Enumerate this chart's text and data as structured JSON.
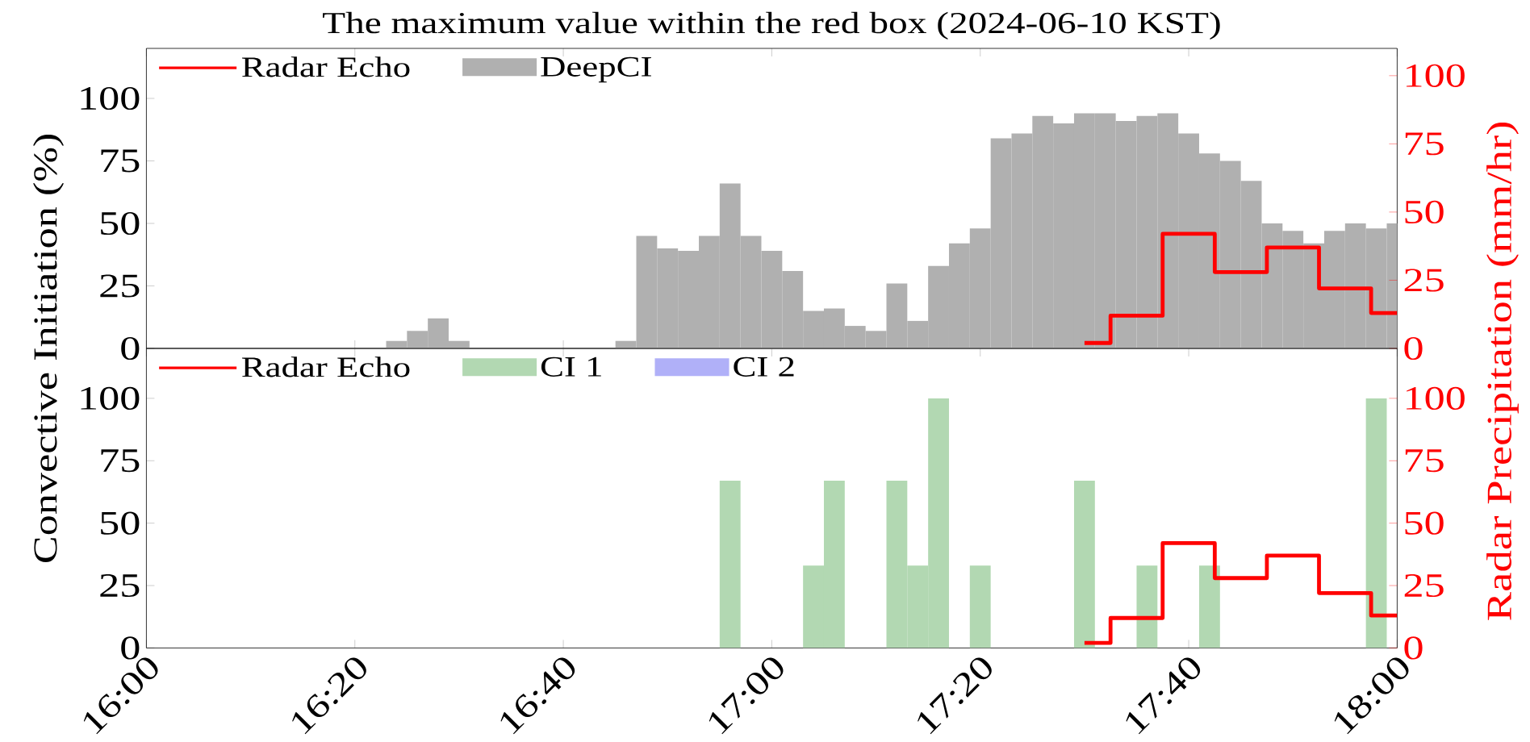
{
  "chart_data": [
    {
      "type": "bar",
      "title": "The maximum value within the red box (2024-06-10 KST)",
      "ylabel": "Convective Initiation (%)",
      "y2label": "Radar Precipitation (mm/hr)",
      "xlim": [
        "2024-06-10T16:00",
        "2024-06-10T18:00"
      ],
      "xticks": [
        {
          "value": "2024-06-10T16:00",
          "label": null
        },
        {
          "value": "2024-06-10T16:20",
          "label": null
        },
        {
          "value": "2024-06-10T16:40",
          "label": null
        },
        {
          "value": "2024-06-10T17:00",
          "label": null
        },
        {
          "value": "2024-06-10T17:20",
          "label": null
        },
        {
          "value": "2024-06-10T17:40",
          "label": null
        },
        {
          "value": "2024-06-10T18:00",
          "label": null
        }
      ],
      "ylim": [
        0,
        120
      ],
      "yticks": [
        0,
        25,
        50,
        75,
        100
      ],
      "y2lim": [
        0,
        110
      ],
      "y2ticks": [
        0,
        25,
        50,
        75,
        100
      ],
      "legend": "top left",
      "tick_labels": "y",
      "series": [
        {
          "name": "Radar Echo",
          "type": "step",
          "axis": "y2",
          "color": "#ff0000",
          "x": [
            "2024-06-10T17:30",
            "2024-06-10T17:35",
            "2024-06-10T17:40",
            "2024-06-10T17:45",
            "2024-06-10T17:50",
            "2024-06-10T17:55",
            "2024-06-10T18:00"
          ],
          "values": [
            2,
            12,
            42,
            28,
            37,
            22,
            13
          ]
        },
        {
          "name": "DeepCI",
          "color": "#b0b0b0",
          "x": [
            "2024-06-10T16:24",
            "2024-06-10T16:26",
            "2024-06-10T16:28",
            "2024-06-10T16:30",
            "2024-06-10T16:46",
            "2024-06-10T16:48",
            "2024-06-10T16:50",
            "2024-06-10T16:52",
            "2024-06-10T16:54",
            "2024-06-10T16:56",
            "2024-06-10T16:58",
            "2024-06-10T17:00",
            "2024-06-10T17:02",
            "2024-06-10T17:04",
            "2024-06-10T17:06",
            "2024-06-10T17:08",
            "2024-06-10T17:10",
            "2024-06-10T17:12",
            "2024-06-10T17:14",
            "2024-06-10T17:16",
            "2024-06-10T17:18",
            "2024-06-10T17:20",
            "2024-06-10T17:22",
            "2024-06-10T17:24",
            "2024-06-10T17:26",
            "2024-06-10T17:28",
            "2024-06-10T17:30",
            "2024-06-10T17:32",
            "2024-06-10T17:34",
            "2024-06-10T17:36",
            "2024-06-10T17:38",
            "2024-06-10T17:40",
            "2024-06-10T17:42",
            "2024-06-10T17:44",
            "2024-06-10T17:46",
            "2024-06-10T17:48",
            "2024-06-10T17:50",
            "2024-06-10T17:52",
            "2024-06-10T17:54",
            "2024-06-10T17:56",
            "2024-06-10T17:58",
            "2024-06-10T18:00"
          ],
          "values": [
            3,
            7,
            12,
            3,
            3,
            45,
            40,
            39,
            45,
            66,
            45,
            39,
            31,
            15,
            16,
            9,
            7,
            26,
            11,
            33,
            42,
            48,
            84,
            86,
            93,
            90,
            94,
            94,
            91,
            93,
            94,
            86,
            78,
            75,
            67,
            50,
            47,
            42,
            47,
            50,
            48,
            50
          ]
        }
      ]
    },
    {
      "type": "bar",
      "xlim": [
        "2024-06-10T16:00",
        "2024-06-10T18:00"
      ],
      "xticks": [
        {
          "value": "2024-06-10T16:00",
          "label": "16:00"
        },
        {
          "value": "2024-06-10T16:20",
          "label": "16:20"
        },
        {
          "value": "2024-06-10T16:40",
          "label": "16:40"
        },
        {
          "value": "2024-06-10T17:00",
          "label": "17:00"
        },
        {
          "value": "2024-06-10T17:20",
          "label": "17:20"
        },
        {
          "value": "2024-06-10T17:40",
          "label": "17:40"
        },
        {
          "value": "2024-06-10T18:00",
          "label": "18:00"
        }
      ],
      "ylim": [
        0,
        120
      ],
      "yticks": [
        0,
        25,
        50,
        75,
        100
      ],
      "y2lim": [
        0,
        120
      ],
      "y2ticks": [
        0,
        25,
        50,
        75,
        100
      ],
      "legend": "top left",
      "series": [
        {
          "name": "Radar Echo",
          "type": "step",
          "axis": "y2",
          "color": "#ff0000",
          "x": [
            "2024-06-10T17:30",
            "2024-06-10T17:35",
            "2024-06-10T17:40",
            "2024-06-10T17:45",
            "2024-06-10T17:50",
            "2024-06-10T17:55",
            "2024-06-10T18:00"
          ],
          "values": [
            2,
            12,
            42,
            28,
            37,
            22,
            13
          ]
        },
        {
          "name": "CI 1",
          "color": "#b2d8b2",
          "x": [
            "2024-06-10T16:56",
            "2024-06-10T17:04",
            "2024-06-10T17:06",
            "2024-06-10T17:12",
            "2024-06-10T17:14",
            "2024-06-10T17:16",
            "2024-06-10T17:20",
            "2024-06-10T17:30",
            "2024-06-10T17:36",
            "2024-06-10T17:42",
            "2024-06-10T17:58"
          ],
          "values": [
            67,
            33,
            67,
            67,
            33,
            100,
            33,
            67,
            33,
            33,
            100
          ]
        },
        {
          "name": "CI 2",
          "color": "#b0b0f8",
          "x": [
            "2024-06-10T16:56",
            "2024-06-10T17:04",
            "2024-06-10T17:06",
            "2024-06-10T17:12",
            "2024-06-10T17:14",
            "2024-06-10T17:16",
            "2024-06-10T17:20",
            "2024-06-10T17:30",
            "2024-06-10T17:36",
            "2024-06-10T17:42",
            "2024-06-10T17:58"
          ],
          "values": [
            0,
            0,
            0,
            0,
            0,
            0,
            0,
            0,
            0,
            0,
            0
          ]
        }
      ]
    }
  ]
}
